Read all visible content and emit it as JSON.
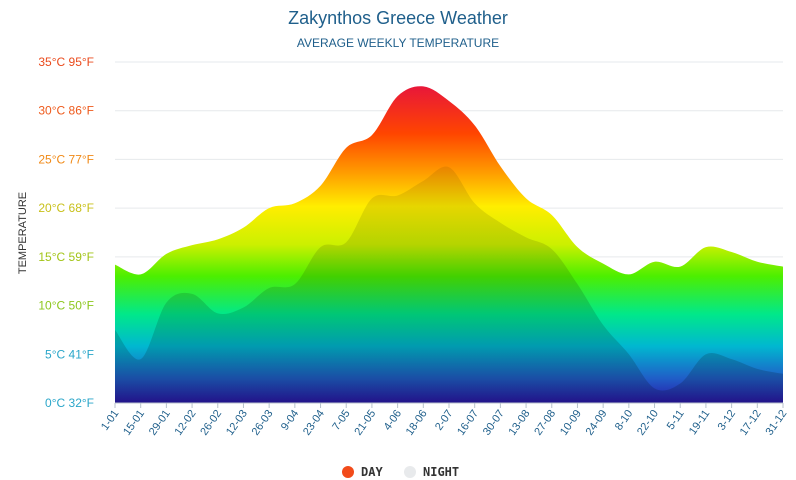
{
  "chart_data": {
    "type": "area",
    "title": "Zakynthos Greece Weather",
    "subtitle": "AVERAGE WEEKLY TEMPERATURE",
    "ylabel": "TEMPERATURE",
    "xlabel": "",
    "ylim": [
      0,
      35
    ],
    "yticks": [
      {
        "value": 0,
        "label": "0°C 32°F",
        "color": "#2aa6c9"
      },
      {
        "value": 5,
        "label": "5°C 41°F",
        "color": "#2aa6c9"
      },
      {
        "value": 10,
        "label": "10°C 50°F",
        "color": "#8cc71d"
      },
      {
        "value": 15,
        "label": "15°C 59°F",
        "color": "#a2c417"
      },
      {
        "value": 20,
        "label": "20°C 68°F",
        "color": "#c8c01a"
      },
      {
        "value": 25,
        "label": "25°C 77°F",
        "color": "#f08a18"
      },
      {
        "value": 30,
        "label": "30°C 86°F",
        "color": "#ee5a1c"
      },
      {
        "value": 35,
        "label": "35°C 95°F",
        "color": "#ea4a1c"
      }
    ],
    "categories": [
      "1-01",
      "15-01",
      "29-01",
      "12-02",
      "26-02",
      "12-03",
      "26-03",
      "9-04",
      "23-04",
      "7-05",
      "21-05",
      "4-06",
      "18-06",
      "2-07",
      "16-07",
      "30-07",
      "13-08",
      "27-08",
      "10-09",
      "24-09",
      "8-10",
      "22-10",
      "5-11",
      "19-11",
      "3-12",
      "17-12",
      "31-12"
    ],
    "series": [
      {
        "name": "DAY",
        "color": "#f24b1a",
        "values": [
          14.2,
          13.2,
          15.3,
          16.2,
          16.8,
          18.0,
          20.0,
          20.5,
          22.3,
          26.2,
          27.5,
          31.5,
          32.5,
          31.0,
          28.5,
          24.3,
          21.0,
          19.3,
          16.0,
          14.3,
          13.2,
          14.5,
          14.0,
          16.0,
          15.5,
          14.5,
          14.0
        ]
      },
      {
        "name": "NIGHT",
        "color": "#e8eaec",
        "values": [
          7.5,
          4.5,
          10.3,
          11.2,
          9.2,
          9.8,
          11.8,
          12.2,
          16.0,
          16.5,
          21.0,
          21.3,
          22.8,
          24.2,
          20.5,
          18.5,
          17.0,
          15.8,
          12.2,
          8.0,
          5.0,
          1.5,
          2.0,
          5.0,
          4.5,
          3.5,
          3.0
        ]
      }
    ],
    "legend_position": "bottom-center",
    "grid": true
  }
}
